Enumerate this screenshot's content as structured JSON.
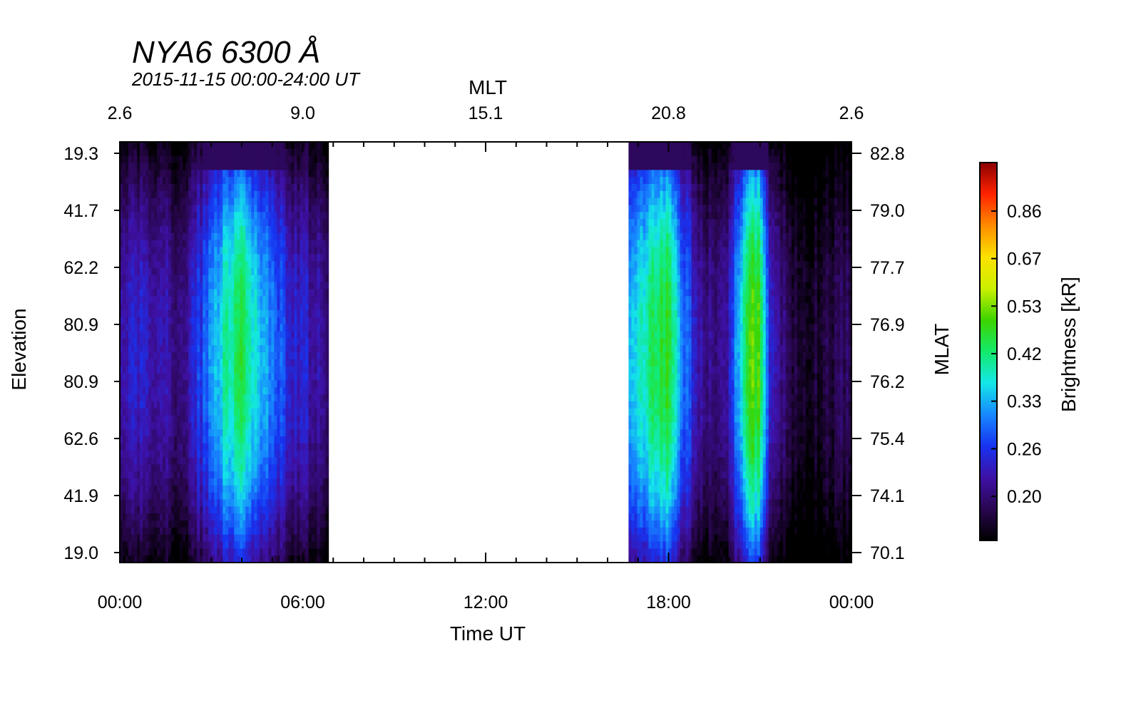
{
  "chart_data": {
    "type": "heatmap",
    "title": "NYA6 6300 Å",
    "subtitle": "2015-11-15 00:00-24:00 UT",
    "xlabel": "Time UT",
    "ylabel": "Elevation",
    "top_axis_label": "MLT",
    "right_axis_label": "MLAT",
    "colorbar_label": "Brightness [kR]",
    "x_ticks": [
      "00:00",
      "06:00",
      "12:00",
      "18:00",
      "00:00"
    ],
    "mlt_ticks": [
      "2.6",
      "9.0",
      "15.1",
      "20.8",
      "2.6"
    ],
    "elevation_ticks": [
      "19.3",
      "41.7",
      "62.2",
      "80.9",
      "80.9",
      "62.6",
      "41.9",
      "19.0"
    ],
    "mlat_ticks": [
      "82.8",
      "79.0",
      "77.7",
      "76.9",
      "76.2",
      "75.4",
      "74.1",
      "70.1"
    ],
    "colorbar_ticks": [
      "0.86",
      "0.67",
      "0.53",
      "0.42",
      "0.33",
      "0.26",
      "0.20"
    ],
    "xlim_hours": [
      0,
      24
    ],
    "data_gaps_hours": [
      [
        6.85,
        16.65
      ]
    ],
    "colormap": "rainbow",
    "colormap_stops": [
      "#000000",
      "#2a0650",
      "#3e11a6",
      "#1733f0",
      "#1788ff",
      "#14e7e7",
      "#13ea6a",
      "#3dd400",
      "#ccf000",
      "#fbe200",
      "#ff8c00",
      "#ff2200",
      "#8b0000"
    ],
    "brightness_profile_hours": [
      [
        0.0,
        0.28
      ],
      [
        0.5,
        0.33
      ],
      [
        1.0,
        0.3
      ],
      [
        1.5,
        0.27
      ],
      [
        2.0,
        0.26
      ],
      [
        2.5,
        0.33
      ],
      [
        3.0,
        0.42
      ],
      [
        3.5,
        0.53
      ],
      [
        4.0,
        0.58
      ],
      [
        4.5,
        0.5
      ],
      [
        5.0,
        0.4
      ],
      [
        5.5,
        0.34
      ],
      [
        6.0,
        0.31
      ],
      [
        6.5,
        0.28
      ],
      [
        6.85,
        0.26
      ],
      [
        16.65,
        0.42
      ],
      [
        17.0,
        0.5
      ],
      [
        17.5,
        0.56
      ],
      [
        18.0,
        0.6
      ],
      [
        18.5,
        0.4
      ],
      [
        19.0,
        0.3
      ],
      [
        19.5,
        0.24
      ],
      [
        20.0,
        0.3
      ],
      [
        20.6,
        0.62
      ],
      [
        21.0,
        0.64
      ],
      [
        21.3,
        0.35
      ],
      [
        22.0,
        0.2
      ],
      [
        23.0,
        0.18
      ],
      [
        23.9,
        0.22
      ],
      [
        24.0,
        0.25
      ]
    ]
  }
}
